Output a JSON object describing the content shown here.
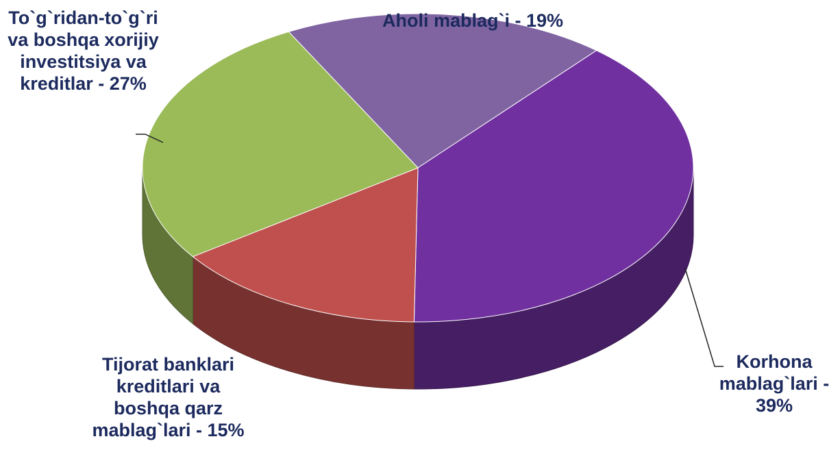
{
  "chart_data": {
    "type": "pie",
    "categories": [
      "Aholi mablag`i -",
      "Korhona mablag`lari -",
      "Tijorat banklari kreditlari va boshqa qarz mablag`lari -",
      "To`g`ridan-to`g`ri va boshqa xorijiy investitsiya va kreditlar -"
    ],
    "values": [
      19,
      39,
      15,
      27
    ],
    "value_labels": [
      "19%",
      "39%",
      "15%",
      "27%"
    ],
    "colors": [
      "#8064a2",
      "#7030a0",
      "#c0504d",
      "#9bbb59"
    ]
  }
}
